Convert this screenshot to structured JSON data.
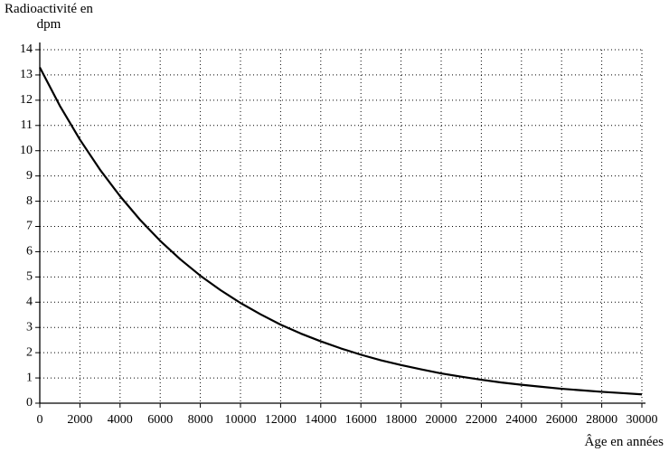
{
  "chart_data": {
    "type": "line",
    "y_label": "Radioactivité en dpm",
    "x_label": "Âge en années",
    "x": [
      0,
      1000,
      2000,
      3000,
      4000,
      5000,
      6000,
      7000,
      8000,
      9000,
      10000,
      11000,
      12000,
      13000,
      14000,
      15000,
      16000,
      17000,
      18000,
      19000,
      20000,
      21000,
      22000,
      23000,
      24000,
      25000,
      26000,
      27000,
      28000,
      29000,
      30000
    ],
    "values": [
      13.3,
      11.78,
      10.44,
      9.25,
      8.2,
      7.26,
      6.43,
      5.7,
      5.05,
      4.48,
      3.97,
      3.52,
      3.11,
      2.76,
      2.45,
      2.17,
      1.92,
      1.7,
      1.51,
      1.34,
      1.18,
      1.05,
      0.93,
      0.82,
      0.73,
      0.65,
      0.57,
      0.51,
      0.45,
      0.4,
      0.35
    ],
    "color": "#000000",
    "xlim": [
      0,
      30000
    ],
    "ylim": [
      0,
      14
    ],
    "xticks": [
      0,
      2000,
      4000,
      6000,
      8000,
      10000,
      12000,
      14000,
      16000,
      18000,
      20000,
      22000,
      24000,
      26000,
      28000,
      30000
    ],
    "yticks": [
      0,
      1,
      2,
      3,
      4,
      5,
      6,
      7,
      8,
      9,
      10,
      11,
      12,
      13,
      14
    ],
    "grid": true
  }
}
